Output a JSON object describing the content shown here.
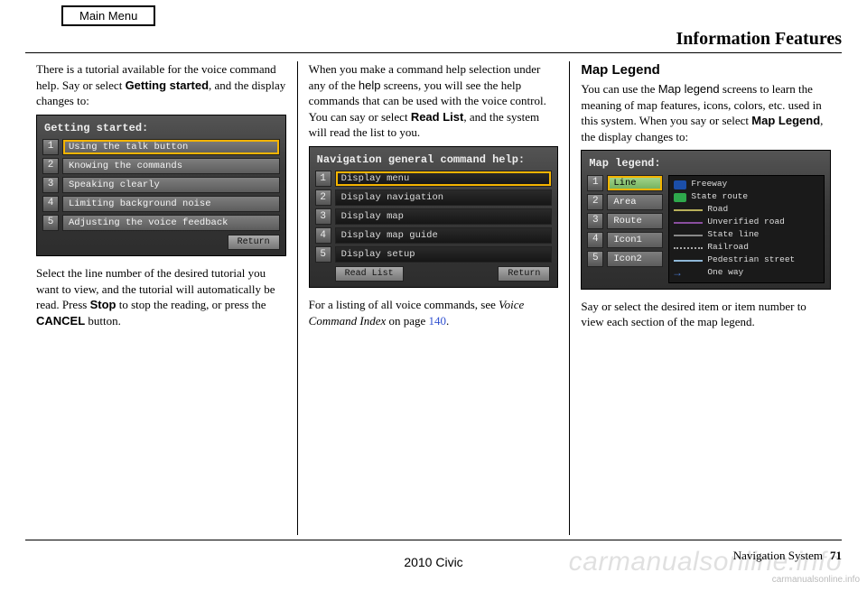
{
  "header": {
    "main_menu": "Main Menu",
    "title": "Information Features"
  },
  "col1": {
    "p1a": "There is a tutorial available for the voice command help. Say or select ",
    "p1b": "Getting started",
    "p1c": ", and the display changes to:",
    "screen": {
      "title": "Getting started:",
      "items": [
        "Using the talk button",
        "Knowing the commands",
        "Speaking clearly",
        "Limiting background noise",
        "Adjusting the voice feedback"
      ],
      "nums": [
        "1",
        "2",
        "3",
        "4",
        "5"
      ],
      "return": "Return"
    },
    "p2a": "Select the line number of the desired tutorial you want to view, and the tutorial will automatically be read. Press ",
    "p2b": "Stop",
    "p2c": " to stop the reading, or press the ",
    "p2d": "CANCEL",
    "p2e": " button."
  },
  "col2": {
    "p1a": "When you make a command help selection under any of the ",
    "p1b": "help",
    "p1c": " screens, you will see the help commands that can be used with the voice control. You can say or select ",
    "p1d": "Read List",
    "p1e": ", and the system will read the list to you.",
    "screen": {
      "title": "Navigation general command help:",
      "items": [
        "Display menu",
        "Display navigation",
        "Display map",
        "Display map guide",
        "Display setup"
      ],
      "nums": [
        "1",
        "2",
        "3",
        "4",
        "5"
      ],
      "readlist": "Read List",
      "return": "Return"
    },
    "p2a": "For a listing of all voice commands, see ",
    "p2b": "Voice Command Index",
    "p2c": " on page ",
    "p2d": "140",
    "p2e": "."
  },
  "col3": {
    "h": "Map Legend",
    "p1a": "You can use the ",
    "p1b": "Map legend",
    "p1c": " screens to learn the meaning of map features, icons, colors, etc. used in this system. When you say or select ",
    "p1d": "Map Legend",
    "p1e": ", the display changes to:",
    "screen": {
      "title": "Map legend:",
      "left_items": [
        "Line",
        "Area",
        "Route",
        "Icon1",
        "Icon2"
      ],
      "nums": [
        "1",
        "2",
        "3",
        "4",
        "5"
      ],
      "legend": [
        {
          "label": "Freeway",
          "color": "#19a0c8",
          "style": "solid",
          "shield": "#1b4ea8"
        },
        {
          "label": "State route",
          "color": "#2ea84c",
          "style": "solid",
          "shield": "#2ea84c"
        },
        {
          "label": "Road",
          "color": "#b8b05a",
          "style": "solid"
        },
        {
          "label": "Unverified road",
          "color": "#8a4fa0",
          "style": "solid"
        },
        {
          "label": "State line",
          "color": "#888888",
          "style": "solid"
        },
        {
          "label": "Railroad",
          "color": "#aaaaaa",
          "style": "dotted"
        },
        {
          "label": "Pedestrian street",
          "color": "#8fb8d8",
          "style": "solid"
        },
        {
          "label": "One way",
          "color": "#4a7ad0",
          "style": "arrow"
        }
      ]
    },
    "p2": "Say or select the desired item or item number to view each section of the map legend."
  },
  "footer": {
    "model": "2010 Civic",
    "section": "Navigation System",
    "page": "71",
    "wm": "carmanualsonline.info",
    "wm2": "carmanualsonline.info"
  }
}
